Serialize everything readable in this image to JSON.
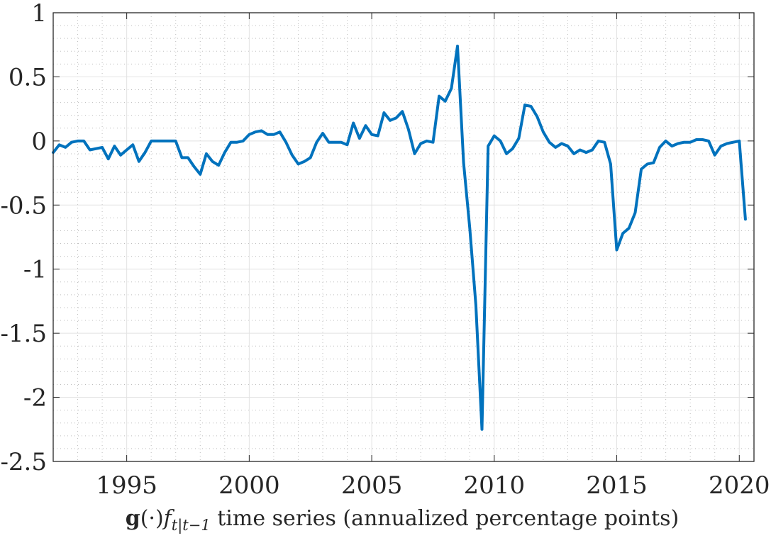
{
  "chart_data": {
    "type": "line",
    "title": "",
    "xlabel_parts": {
      "bold": "g",
      "mid": "(·)",
      "f": "f",
      "sub": "t|t−1",
      "rest": " time series (annualized percentage points)"
    },
    "ylabel": "",
    "xlim": [
      1992.0,
      2020.6
    ],
    "ylim": [
      -2.5,
      1
    ],
    "xticks": [
      1995,
      2000,
      2005,
      2010,
      2015,
      2020
    ],
    "yticks": [
      -2.5,
      -2,
      -1.5,
      -1,
      -0.5,
      0,
      0.5,
      1
    ],
    "xtick_labels": [
      "1995",
      "2000",
      "2005",
      "2010",
      "2015",
      "2020"
    ],
    "ytick_labels": [
      "-2.5",
      "-2",
      "-1.5",
      "-1",
      "-0.5",
      "0",
      "0.5",
      "1"
    ],
    "grid": "major and minor",
    "line_color": "#0072BD",
    "series": [
      {
        "x": [
          1992.0,
          1992.25,
          1992.5,
          1992.75,
          1993.0,
          1993.25,
          1993.5,
          1993.75,
          1994.0,
          1994.25,
          1994.5,
          1994.75,
          1995.0,
          1995.25,
          1995.5,
          1995.75,
          1996.0,
          1996.25,
          1996.5,
          1996.75,
          1997.0,
          1997.25,
          1997.5,
          1997.75,
          1998.0,
          1998.25,
          1998.5,
          1998.75,
          1999.0,
          1999.25,
          1999.5,
          1999.75,
          2000.0,
          2000.25,
          2000.5,
          2000.75,
          2001.0,
          2001.25,
          2001.5,
          2001.75,
          2002.0,
          2002.25,
          2002.5,
          2002.75,
          2003.0,
          2003.25,
          2003.5,
          2003.75,
          2004.0,
          2004.25,
          2004.5,
          2004.75,
          2005.0,
          2005.25,
          2005.5,
          2005.75,
          2006.0,
          2006.25,
          2006.5,
          2006.75,
          2007.0,
          2007.25,
          2007.5,
          2007.75,
          2008.0,
          2008.25,
          2008.5,
          2008.75,
          2009.0,
          2009.25,
          2009.5,
          2009.75,
          2010.0,
          2010.25,
          2010.5,
          2010.75,
          2011.0,
          2011.25,
          2011.5,
          2011.75,
          2012.0,
          2012.25,
          2012.5,
          2012.75,
          2013.0,
          2013.25,
          2013.5,
          2013.75,
          2014.0,
          2014.25,
          2014.5,
          2014.75,
          2015.0,
          2015.25,
          2015.5,
          2015.75,
          2016.0,
          2016.25,
          2016.5,
          2016.75,
          2017.0,
          2017.25,
          2017.5,
          2017.75,
          2018.0,
          2018.25,
          2018.5,
          2018.75,
          2019.0,
          2019.25,
          2019.5,
          2019.75,
          2020.0,
          2020.25
        ],
        "y": [
          -0.09,
          -0.03,
          -0.05,
          -0.01,
          0.0,
          0.0,
          -0.07,
          -0.06,
          -0.05,
          -0.14,
          -0.04,
          -0.11,
          -0.07,
          -0.03,
          -0.16,
          -0.09,
          0.0,
          0.0,
          0.0,
          0.0,
          0.0,
          -0.13,
          -0.13,
          -0.2,
          -0.26,
          -0.1,
          -0.16,
          -0.19,
          -0.09,
          -0.01,
          -0.01,
          0.0,
          0.05,
          0.07,
          0.08,
          0.05,
          0.05,
          0.07,
          -0.01,
          -0.11,
          -0.18,
          -0.16,
          -0.13,
          -0.01,
          0.06,
          -0.01,
          -0.01,
          -0.01,
          -0.03,
          0.14,
          0.02,
          0.12,
          0.05,
          0.04,
          0.22,
          0.16,
          0.18,
          0.23,
          0.09,
          -0.1,
          -0.02,
          0.0,
          -0.01,
          0.35,
          0.31,
          0.41,
          0.74,
          -0.17,
          -0.68,
          -1.28,
          -2.25,
          -0.04,
          0.04,
          0.0,
          -0.1,
          -0.06,
          0.02,
          0.28,
          0.27,
          0.19,
          0.07,
          -0.01,
          -0.05,
          -0.02,
          -0.04,
          -0.1,
          -0.07,
          -0.09,
          -0.07,
          0.0,
          -0.01,
          -0.18,
          -0.85,
          -0.72,
          -0.68,
          -0.56,
          -0.22,
          -0.18,
          -0.17,
          -0.05,
          0.0,
          -0.04,
          -0.02,
          -0.01,
          -0.01,
          0.01,
          0.01,
          0.0,
          -0.11,
          -0.04,
          -0.02,
          -0.01,
          0.0,
          -0.61
        ]
      }
    ]
  }
}
